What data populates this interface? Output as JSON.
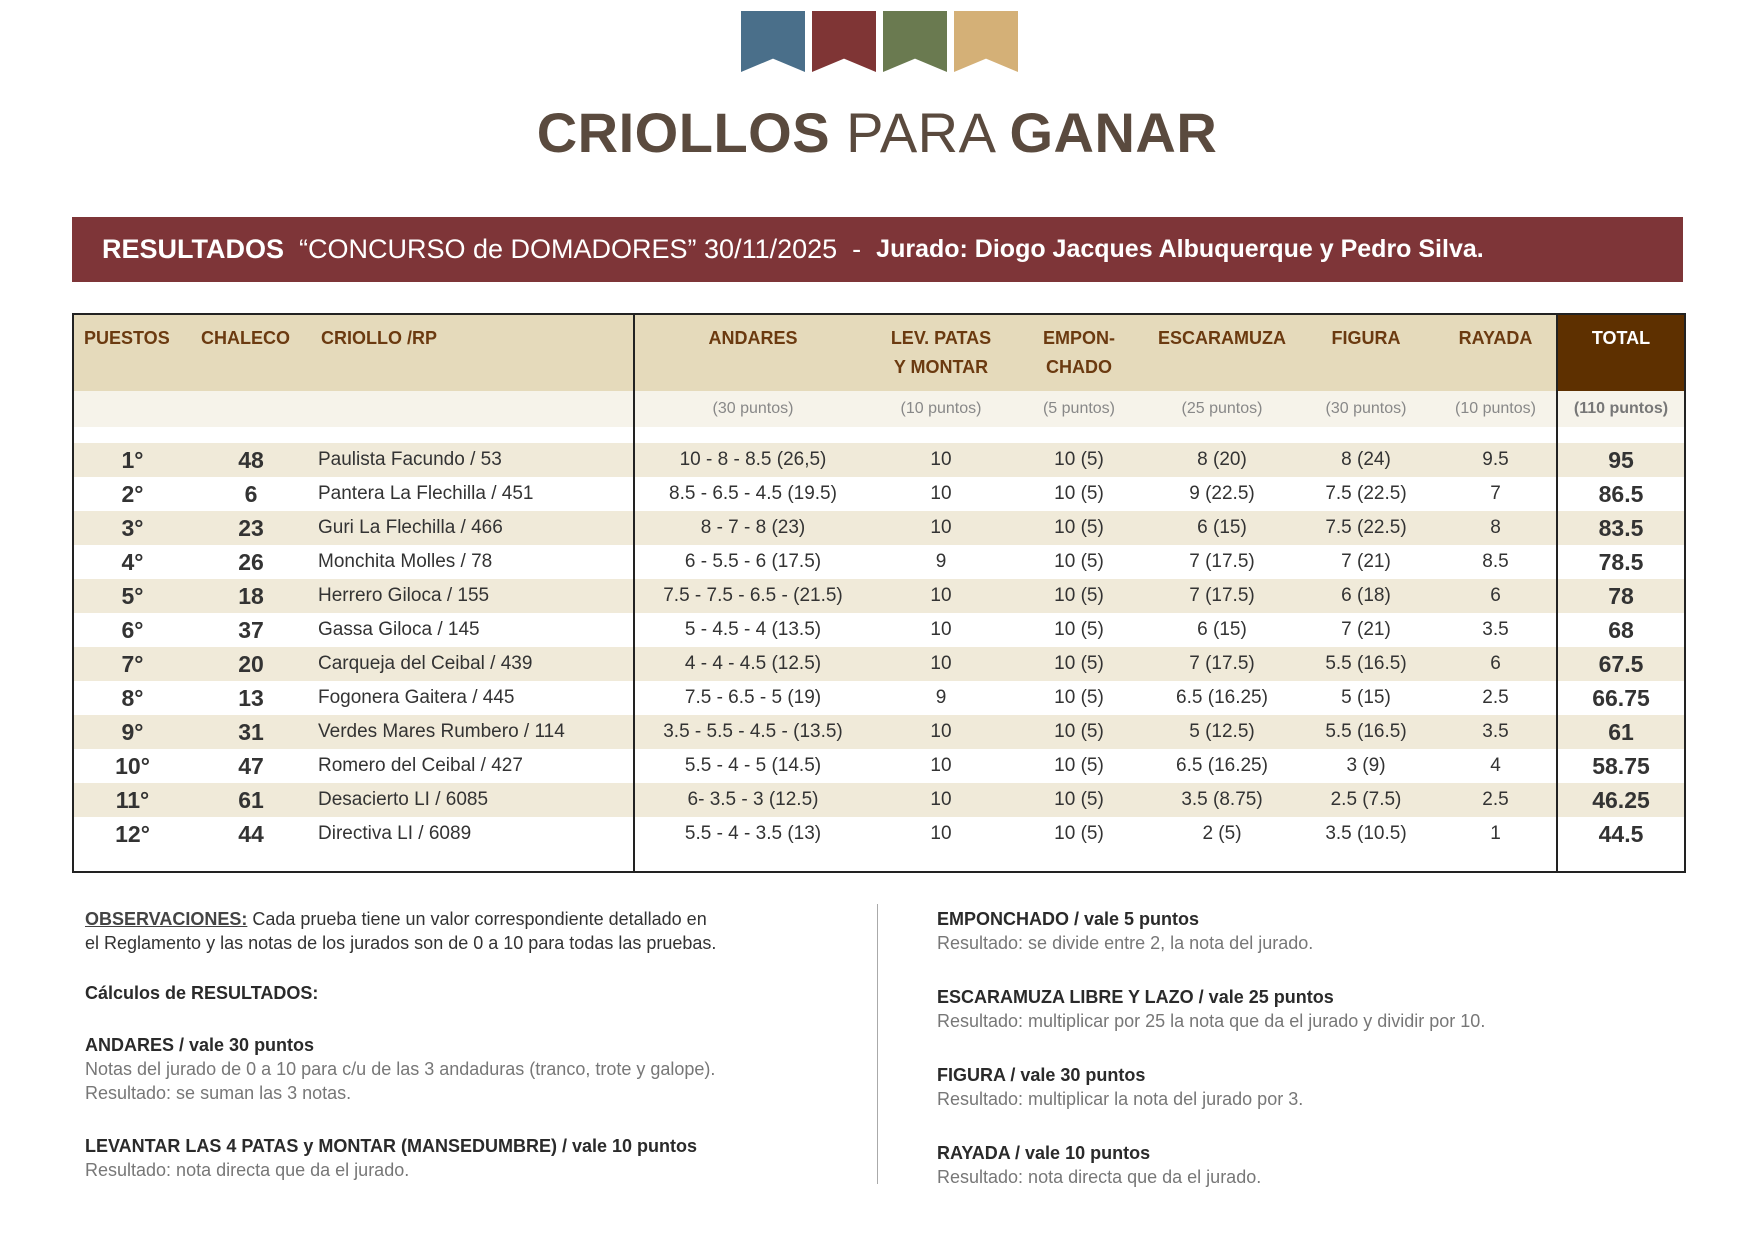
{
  "colors": {
    "flag_blue": "#4a6f8a",
    "flag_maroon": "#7f3535",
    "flag_green": "#6a7a50",
    "flag_tan": "#d4b077",
    "banner": "#7e3538",
    "header_bg": "#e5dabb",
    "total_header_bg": "#5e3000",
    "alt_row": "#f0ead9"
  },
  "logo": {
    "part1": "CRIOLLOS",
    "part2": " PARA ",
    "part3": "GANAR"
  },
  "banner": {
    "label": "RESULTADOS",
    "event": "  “CONCURSO de DOMADORES” 30/11/2025  -  ",
    "jury": "Jurado: Diogo Jacques Albuquerque y Pedro Silva."
  },
  "table": {
    "headers": [
      "PUESTOS",
      "CHALECO",
      "CRIOLLO /RP",
      "ANDARES",
      "LEV. PATAS\nY MONTAR",
      "EMPON-\nCHADO",
      "ESCARAMUZA",
      "FIGURA",
      "RAYADA",
      "TOTAL"
    ],
    "points": [
      "",
      "",
      "",
      "(30 puntos)",
      "(10 puntos)",
      "(5 puntos)",
      "(25 puntos)",
      "(30 puntos)",
      "(10 puntos)",
      "(110 puntos)"
    ],
    "rows": [
      [
        "1°",
        "48",
        "Paulista Facundo / 53",
        "10 - 8 - 8.5  (26,5)",
        "10",
        "10 (5)",
        "8 (20)",
        "8 (24)",
        "9.5",
        "95"
      ],
      [
        "2°",
        "6",
        "Pantera La Flechilla / 451",
        "8.5 - 6.5 - 4.5 (19.5)",
        "10",
        "10 (5)",
        "9 (22.5)",
        "7.5 (22.5)",
        "7",
        "86.5"
      ],
      [
        "3°",
        "23",
        "Guri La Flechilla / 466",
        "8 - 7 - 8  (23)",
        "10",
        "10 (5)",
        "6 (15)",
        "7.5 (22.5)",
        "8",
        "83.5"
      ],
      [
        "4°",
        "26",
        "Monchita Molles / 78",
        "6 - 5.5 - 6  (17.5)",
        "9",
        "10 (5)",
        "7 (17.5)",
        "7 (21)",
        "8.5",
        "78.5"
      ],
      [
        "5°",
        "18",
        "Herrero Giloca / 155",
        "7.5 - 7.5 - 6.5 - (21.5)",
        "10",
        "10 (5)",
        "7 (17.5)",
        "6 (18)",
        "6",
        "78"
      ],
      [
        "6°",
        "37",
        "Gassa Giloca / 145",
        "5 - 4.5 - 4  (13.5)",
        "10",
        "10 (5)",
        "6 (15)",
        "7 (21)",
        "3.5",
        "68"
      ],
      [
        "7°",
        "20",
        "Carqueja del Ceibal / 439",
        "4 - 4 - 4.5  (12.5)",
        "10",
        "10 (5)",
        "7 (17.5)",
        "5.5 (16.5)",
        "6",
        "67.5"
      ],
      [
        "8°",
        "13",
        "Fogonera Gaitera / 445",
        "7.5 - 6.5 - 5  (19)",
        "9",
        "10 (5)",
        "6.5 (16.25)",
        "5 (15)",
        "2.5",
        "66.75"
      ],
      [
        "9°",
        "31",
        "Verdes Mares Rumbero / 114",
        "3.5 - 5.5 - 4.5 - (13.5)",
        "10",
        "10 (5)",
        "5 (12.5)",
        "5.5 (16.5)",
        "3.5",
        "61"
      ],
      [
        "10°",
        "47",
        "Romero del Ceibal / 427",
        "5.5 - 4 - 5 (14.5)",
        "10",
        "10 (5)",
        "6.5 (16.25)",
        "3 (9)",
        "4",
        "58.75"
      ],
      [
        "11°",
        "61",
        "Desacierto LI / 6085",
        "6- 3.5 - 3  (12.5)",
        "10",
        "10 (5)",
        "3.5 (8.75)",
        "2.5 (7.5)",
        "2.5",
        "46.25"
      ],
      [
        "12°",
        "44",
        "Directiva LI / 6089",
        "5.5 - 4 - 3.5  (13)",
        "10",
        "10 (5)",
        "2 (5)",
        "3.5 (10.5)",
        "1",
        "44.5"
      ]
    ]
  },
  "notes": {
    "obs_label": "OBSERVACIONES:",
    "obs_text": " Cada prueba tiene un valor correspondiente detallado en",
    "obs_text2": "el Reglamento y las notas de los jurados son de 0 a 10 para todas las pruebas.",
    "calc_title": "Cálculos de RESULTADOS:",
    "andares_h": "ANDARES / vale 30 puntos",
    "andares_1": "Notas del jurado de 0 a 10 para c/u de las 3 andaduras (tranco, trote y galope).",
    "andares_2": "Resultado: se suman las 3 notas.",
    "lev_h": "LEVANTAR LAS 4 PATAS y MONTAR (MANSEDUMBRE) / vale 10 puntos",
    "lev_1": "Resultado: nota directa que da el jurado.",
    "emp_h": "EMPONCHADO / vale 5 puntos",
    "emp_1": "Resultado: se divide entre 2, la nota del jurado.",
    "esc_h": "ESCARAMUZA  LIBRE  Y LAZO / vale 25 puntos",
    "esc_1": "Resultado: multiplicar por 25 la nota que da el jurado y dividir por 10.",
    "fig_h": "FIGURA / vale 30 puntos",
    "fig_1": "Resultado: multiplicar la nota del jurado por 3.",
    "ray_h": "RAYADA / vale 10 puntos",
    "ray_1": "Resultado: nota directa que da el jurado."
  }
}
